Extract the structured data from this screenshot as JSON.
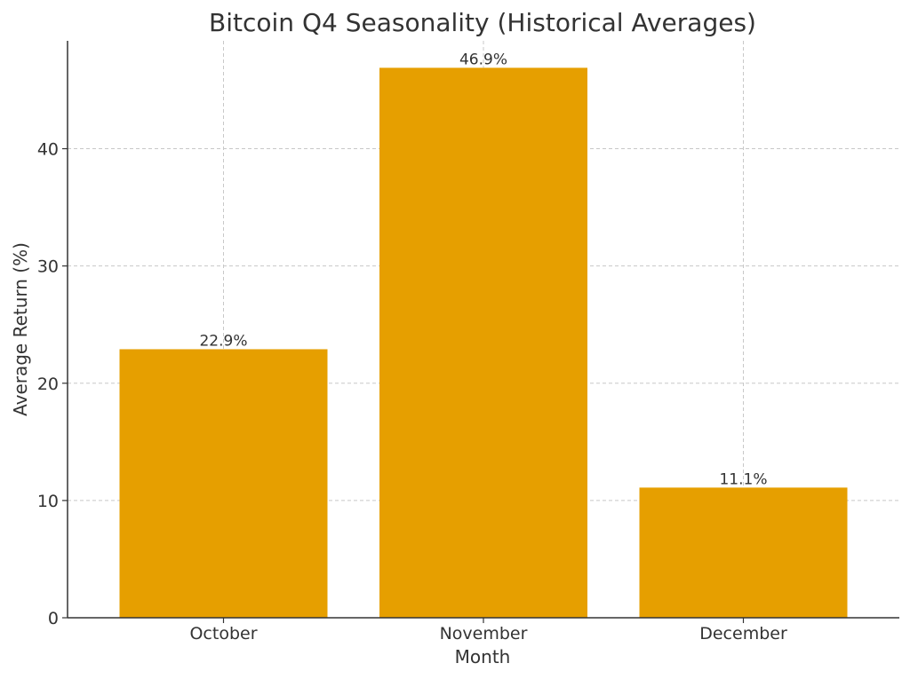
{
  "chart_data": {
    "type": "bar",
    "title": "Bitcoin Q4 Seasonality (Historical Averages)",
    "xlabel": "Month",
    "ylabel": "Average Return (%)",
    "categories": [
      "October",
      "November",
      "December"
    ],
    "values": [
      22.9,
      46.9,
      11.1
    ],
    "value_labels": [
      "22.9%",
      "46.9%",
      "11.1%"
    ],
    "ylim": [
      0,
      49.2
    ],
    "yticks": [
      0,
      10,
      20,
      30,
      40
    ],
    "grid": true,
    "bar_color": "#E69F00"
  }
}
